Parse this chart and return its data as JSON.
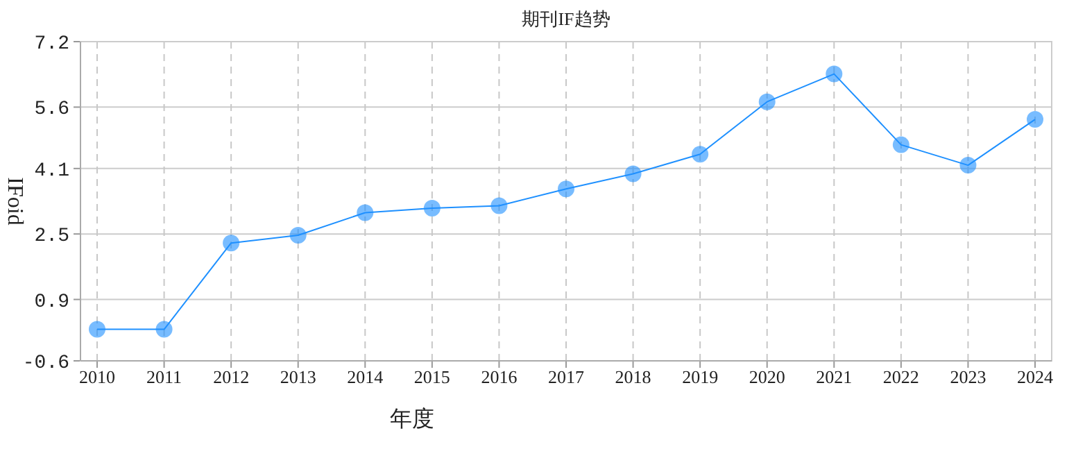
{
  "chart_data": {
    "type": "line",
    "title": "期刊IF趋势",
    "xlabel": "年度",
    "ylabel": "IFoid",
    "categories": [
      "2010",
      "2011",
      "2012",
      "2013",
      "2014",
      "2015",
      "2016",
      "2017",
      "2018",
      "2019",
      "2020",
      "2021",
      "2022",
      "2023",
      "2024"
    ],
    "series": [
      {
        "color": "#1e90ff",
        "values": [
          0.17,
          0.17,
          2.28,
          2.47,
          3.02,
          3.13,
          3.19,
          3.6,
          3.97,
          4.45,
          5.73,
          6.41,
          4.68,
          4.18,
          5.3
        ]
      }
    ],
    "marker": "circle",
    "line_style": "solid",
    "grid": true,
    "ylim": [
      -0.6,
      7.2
    ],
    "yticks": [
      -0.6,
      0.9,
      2.5,
      4.1,
      5.6,
      7.2
    ]
  }
}
